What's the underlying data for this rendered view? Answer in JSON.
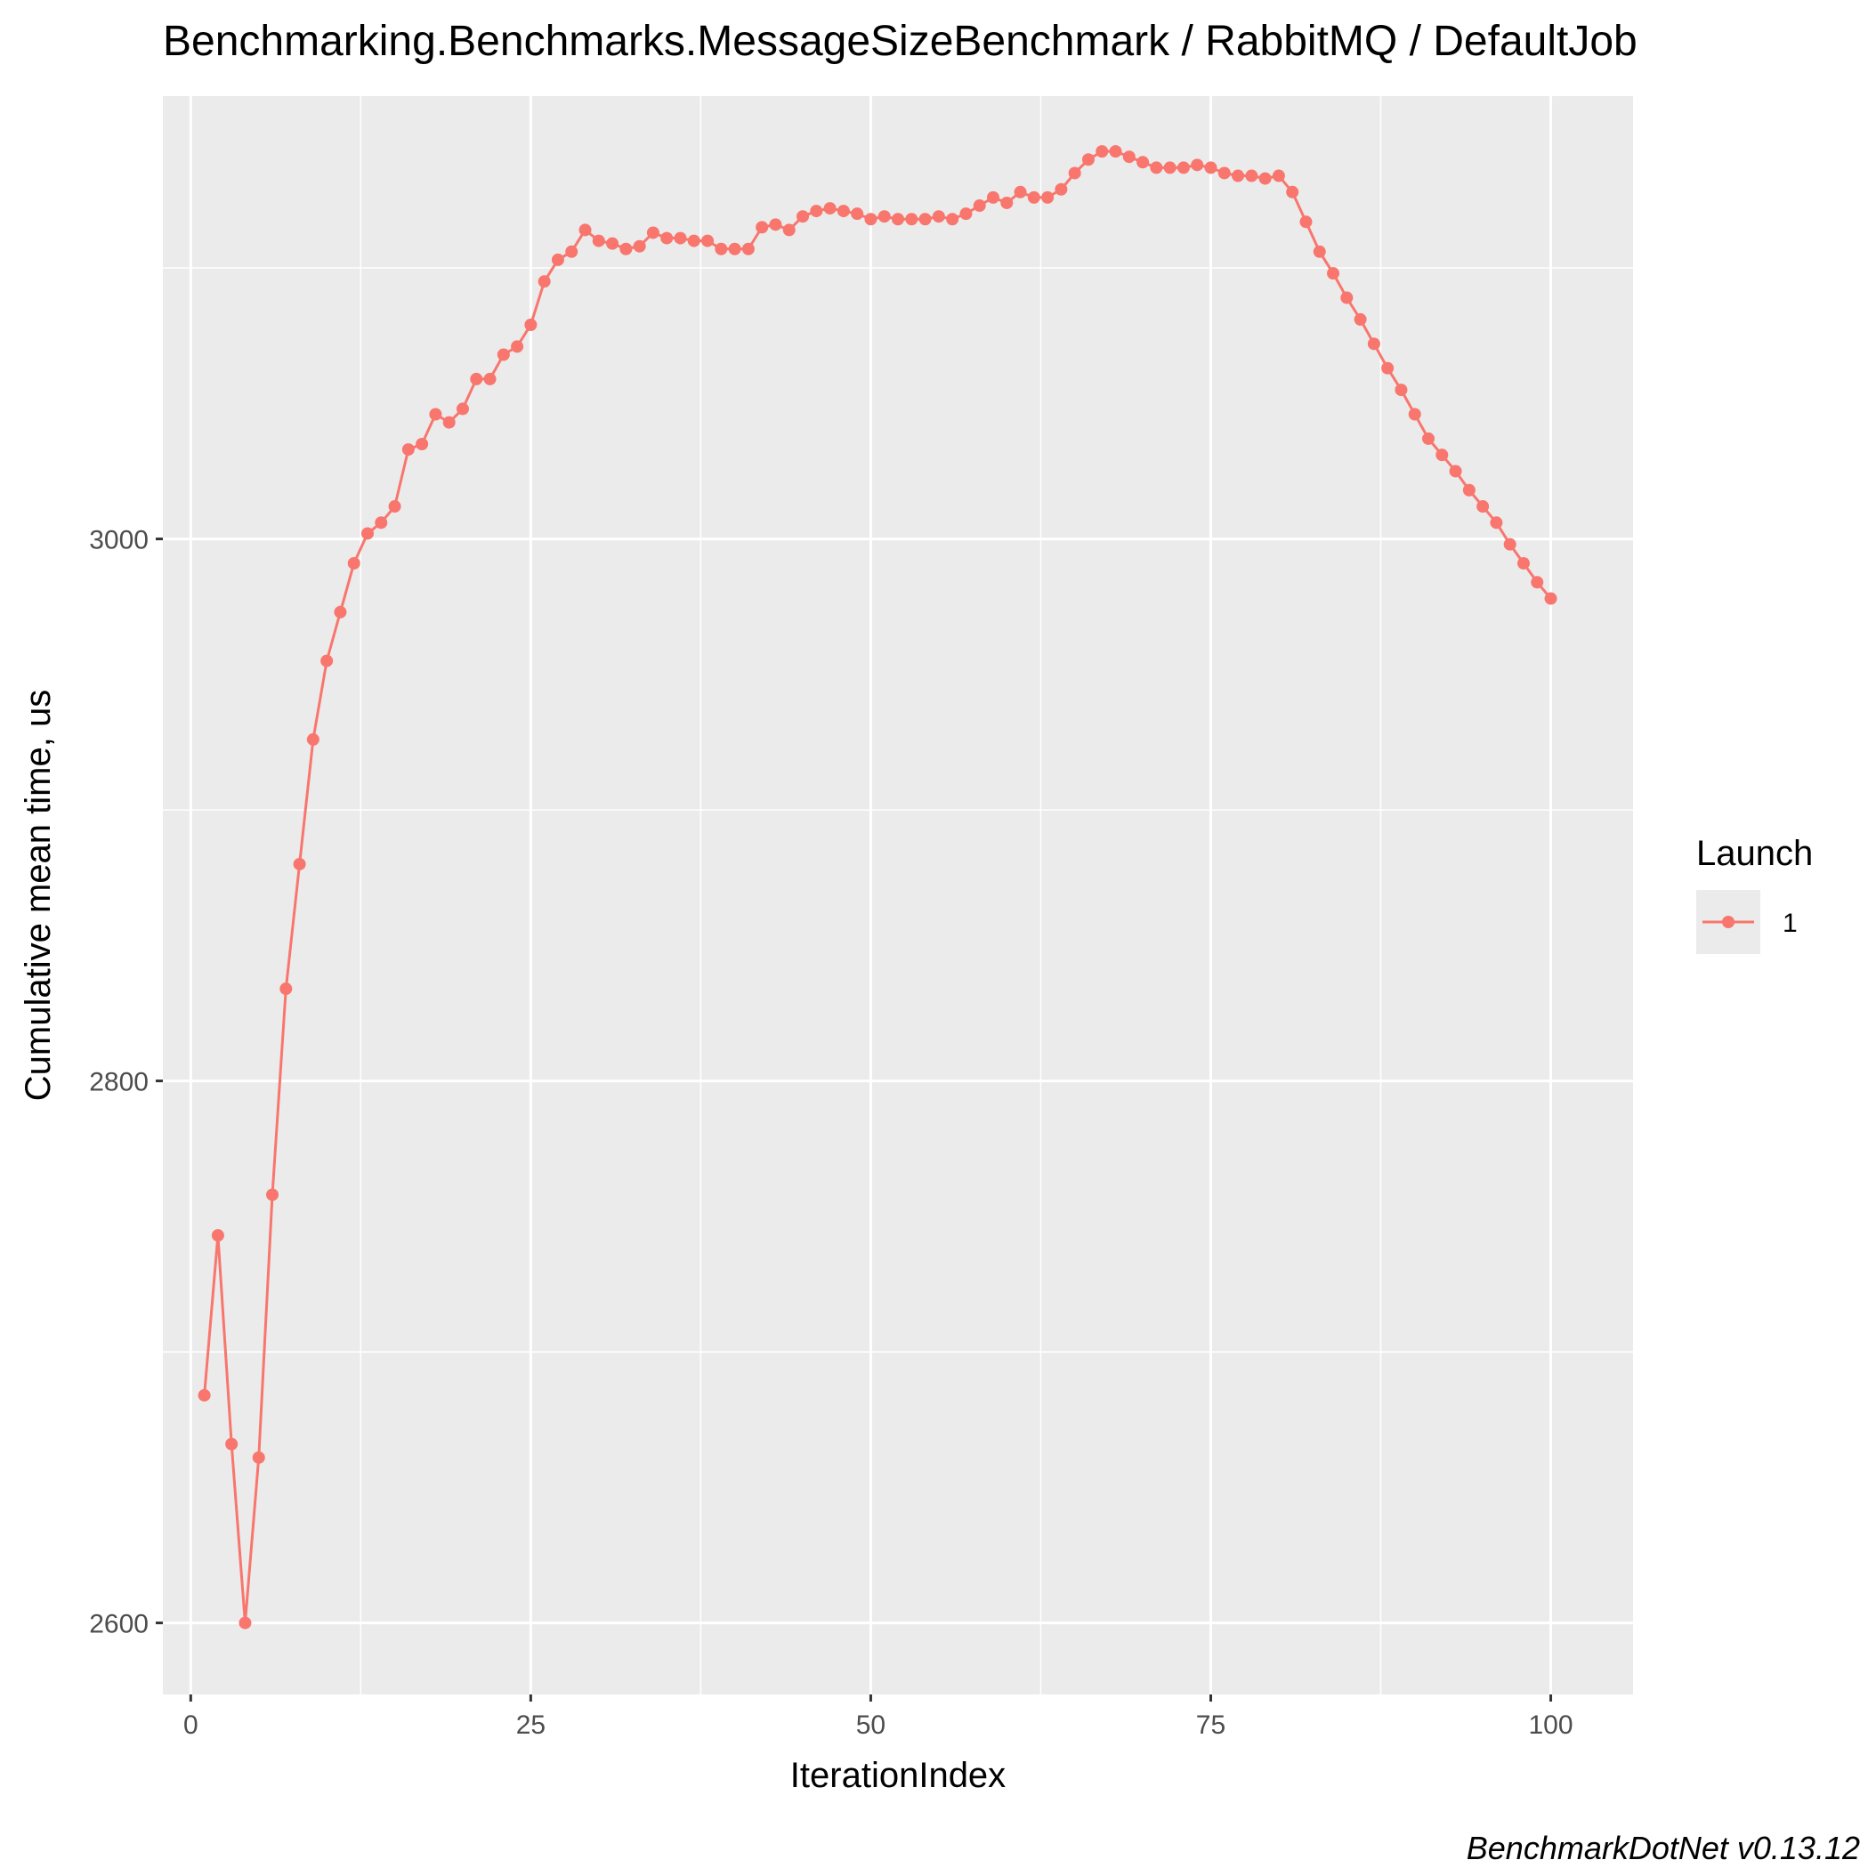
{
  "chart_data": {
    "type": "line",
    "title": "Benchmarking.Benchmarks.MessageSizeBenchmark / RabbitMQ / DefaultJob",
    "xlabel": "IterationIndex",
    "ylabel": "Cumulative mean time, us",
    "caption": "BenchmarkDotNet v0.13.12",
    "xlim": [
      -2.05,
      106.05
    ],
    "ylim": [
      2573.6,
      3163.4
    ],
    "x_ticks": [
      0,
      25,
      50,
      75,
      100
    ],
    "x_tick_labels": [
      "0",
      "25",
      "50",
      "75",
      "100"
    ],
    "y_ticks": [
      2600,
      2800,
      3000
    ],
    "y_tick_labels": [
      "2600",
      "2800",
      "3000"
    ],
    "grid": true,
    "legend": {
      "title": "Launch",
      "position": "right"
    },
    "colors": {
      "series": "#F8766D",
      "panel": "#EBEBEB",
      "grid": "#FFFFFF"
    },
    "series": [
      {
        "name": "1",
        "x": [
          1,
          2,
          3,
          4,
          5,
          6,
          7,
          8,
          9,
          10,
          11,
          12,
          13,
          14,
          15,
          16,
          17,
          18,
          19,
          20,
          21,
          22,
          23,
          24,
          25,
          26,
          27,
          28,
          29,
          30,
          31,
          32,
          33,
          34,
          35,
          36,
          37,
          38,
          39,
          40,
          41,
          42,
          43,
          44,
          45,
          46,
          47,
          48,
          49,
          50,
          51,
          52,
          53,
          54,
          55,
          56,
          57,
          58,
          59,
          60,
          61,
          62,
          63,
          64,
          65,
          66,
          67,
          68,
          69,
          70,
          71,
          72,
          73,
          74,
          75,
          76,
          77,
          78,
          79,
          80,
          81,
          82,
          83,
          84,
          85,
          86,
          87,
          88,
          89,
          90,
          91,
          92,
          93,
          94,
          95,
          96,
          97,
          98,
          99,
          100
        ],
        "values": [
          2684,
          2743,
          2666,
          2600,
          2661,
          2758,
          2834,
          2880,
          2926,
          2955,
          2973,
          2991,
          3002,
          3006,
          3012,
          3033,
          3035,
          3046,
          3043,
          3048,
          3059,
          3059,
          3068,
          3071,
          3079,
          3095,
          3103,
          3106,
          3114,
          3110,
          3109,
          3107,
          3108,
          3113,
          3111,
          3111,
          3110,
          3110,
          3107,
          3107,
          3107,
          3115,
          3116,
          3114,
          3119,
          3121,
          3122,
          3121,
          3120,
          3118,
          3119,
          3118,
          3118,
          3118,
          3119,
          3118,
          3120,
          3123,
          3126,
          3124,
          3128,
          3126,
          3126,
          3129,
          3135,
          3140,
          3143,
          3143,
          3141,
          3139,
          3137,
          3137,
          3137,
          3138,
          3137,
          3135,
          3134,
          3134,
          3133,
          3134,
          3128,
          3117,
          3106,
          3098,
          3089,
          3081,
          3072,
          3063,
          3055,
          3046,
          3037,
          3031,
          3025,
          3018,
          3012,
          3006,
          2998,
          2991,
          2984,
          2978
        ]
      }
    ]
  }
}
